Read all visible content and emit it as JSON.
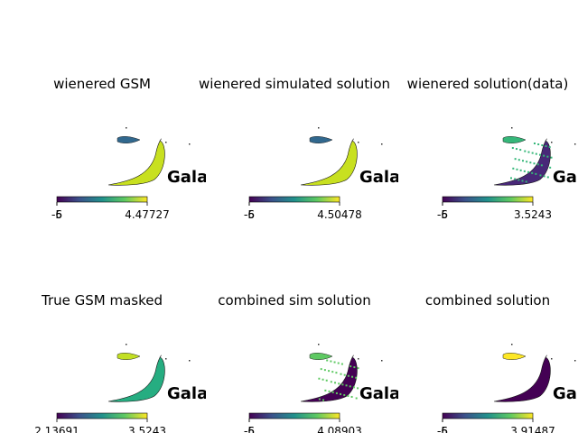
{
  "chart_data": [
    {
      "type": "heatmap",
      "title": "wienered GSM",
      "colorbar": {
        "ticks": [
          "-6",
          "-5",
          "4.47727"
        ]
      },
      "overlay_text": "Gala",
      "fill": "#c8e020",
      "secondary": "#31688e",
      "noisy": false
    },
    {
      "type": "heatmap",
      "title": "wienered simulated solution",
      "colorbar": {
        "ticks": [
          "-6",
          "-5",
          "4.50478"
        ]
      },
      "overlay_text": "Gala",
      "fill": "#c8e020",
      "secondary": "#31688e",
      "noisy": false
    },
    {
      "type": "heatmap",
      "title": "wienered solution(data)",
      "colorbar": {
        "ticks": [
          "-6",
          "-5",
          "3.5243"
        ]
      },
      "overlay_text": "Gala",
      "fill": "#482878",
      "secondary": "#35b779",
      "noisy": true
    },
    {
      "type": "heatmap",
      "title": "True GSM masked",
      "colorbar": {
        "ticks": [
          "2.13691",
          "3.5243"
        ]
      },
      "overlay_text": "Gala",
      "fill": "#26ad81",
      "secondary": "#c2df23",
      "noisy": false
    },
    {
      "type": "heatmap",
      "title": "combined sim solution",
      "colorbar": {
        "ticks": [
          "-6",
          "-5",
          "4.08903"
        ]
      },
      "overlay_text": "Gala",
      "fill": "#440154",
      "secondary": "#5ec962",
      "noisy": true
    },
    {
      "type": "heatmap",
      "title": "combined solution",
      "colorbar": {
        "ticks": [
          "-6",
          "-5",
          "3.91487"
        ]
      },
      "overlay_text": "Gala",
      "fill": "#440154",
      "secondary": "#fde725",
      "noisy": false
    }
  ],
  "colors": {
    "viridis": [
      "#440154",
      "#3b528b",
      "#21918c",
      "#5ec962",
      "#fde725"
    ]
  }
}
